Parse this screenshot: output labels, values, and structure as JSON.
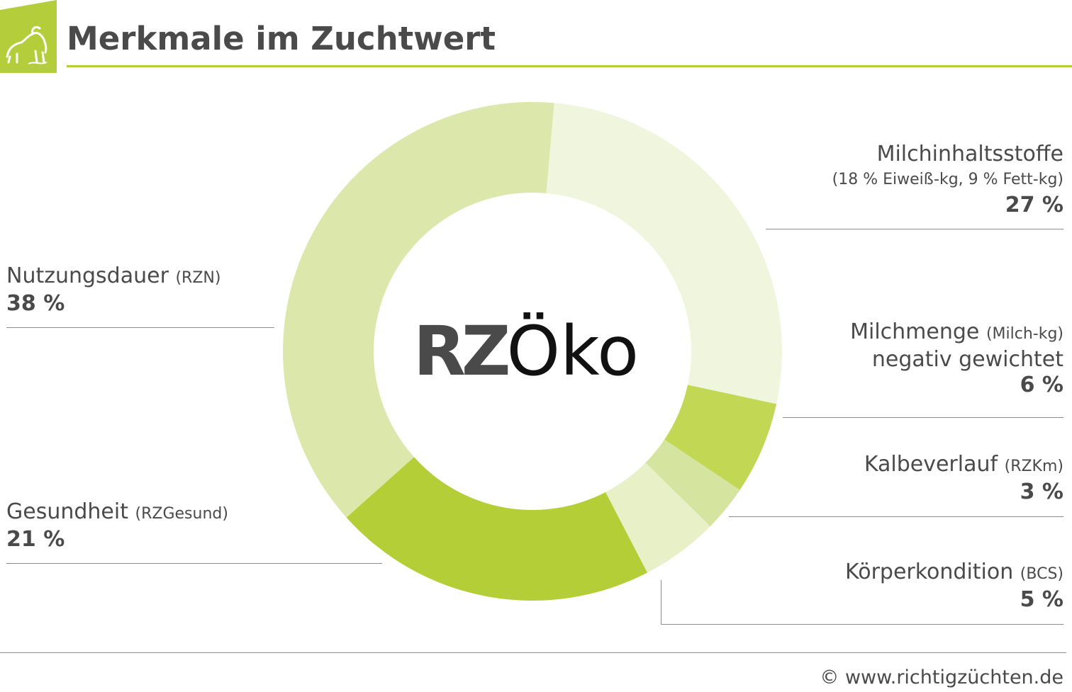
{
  "header": {
    "title": "Merkmale im Zuchtwert",
    "logo_icon": "cow-icon",
    "accent_color": "#b3ce3a"
  },
  "center_label": {
    "rz": "RZ",
    "oko": "Öko"
  },
  "chart_data": {
    "type": "pie",
    "variant": "donut",
    "title": "Merkmale im Zuchtwert",
    "slices": [
      {
        "label": "Milchinhaltsstoffe",
        "detail": "(18 % Eiweiß-kg, 9 % Fett-kg)",
        "value": 27,
        "display": "27 %",
        "color": "#f0f6dd"
      },
      {
        "label": "Milchmenge",
        "detail": "(Milch-kg)",
        "detail2": "negativ gewichtet",
        "value": 6,
        "display": "6 %",
        "color": "#c2d855"
      },
      {
        "label": "Kalbeverlauf",
        "detail": "(RZKm)",
        "value": 3,
        "display": "3 %",
        "color": "#d5e49e"
      },
      {
        "label": "Körperkondition",
        "detail": "(BCS)",
        "value": 5,
        "display": "5 %",
        "color": "#e7f0c6"
      },
      {
        "label": "Gesundheit",
        "detail": "(RZGesund)",
        "value": 21,
        "display": "21 %",
        "color": "#b3ce36"
      },
      {
        "label": "Nutzungsdauer",
        "detail": "(RZN)",
        "value": 38,
        "display": "38 %",
        "color": "#dce8ab"
      }
    ]
  },
  "footer": {
    "copyright": "© www.richtigzüchten.de"
  }
}
